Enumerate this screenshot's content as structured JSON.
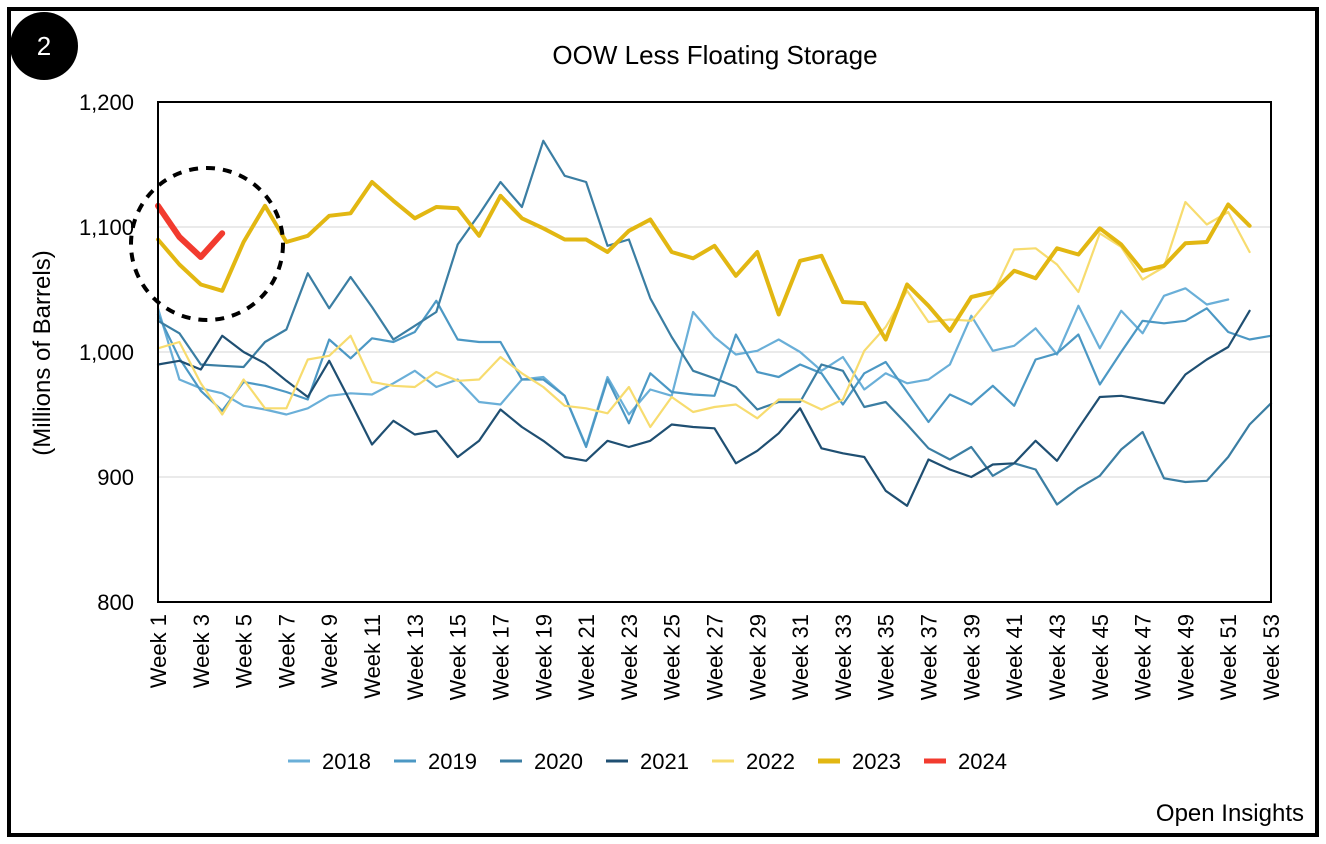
{
  "badge": {
    "number": "2"
  },
  "footer": {
    "source": "Open Insights"
  },
  "colors": {
    "2018": "#6aafd8",
    "2019": "#4c98c4",
    "2020": "#3b7ea3",
    "2021": "#1f4f72",
    "2022": "#f7dc6f",
    "2023": "#e2b712",
    "2024": "#f23b2f"
  },
  "chart_data": {
    "type": "line",
    "title": "OOW Less Floating Storage",
    "ylabel": "(Millions of Barrels)",
    "xlabel": "",
    "ylim": [
      800,
      1200
    ],
    "yticks": [
      800,
      900,
      1000,
      1100,
      1200
    ],
    "ytick_labels": [
      "800",
      "900",
      "1,000",
      "1,100",
      "1,200"
    ],
    "xtick_labels": [
      "Week 1",
      "Week 3",
      "Week 5",
      "Week 7",
      "Week 9",
      "Week 11",
      "Week 13",
      "Week 15",
      "Week 17",
      "Week 19",
      "Week 21",
      "Week 23",
      "Week 25",
      "Week 27",
      "Week 29",
      "Week 31",
      "Week 33",
      "Week 35",
      "Week 37",
      "Week 39",
      "Week 41",
      "Week 43",
      "Week 45",
      "Week 47",
      "Week 49",
      "Week 51",
      "Week 53"
    ],
    "grid": "horizontal",
    "legend": "bottom",
    "annotation": "dashed circle around weeks 1-5",
    "series": [
      {
        "name": "2018",
        "values": [
          1035,
          978,
          971,
          967,
          957,
          954,
          950,
          955,
          965,
          967,
          966,
          975,
          985,
          972,
          978,
          960,
          958,
          978,
          980,
          965,
          925,
          980,
          950,
          970,
          965,
          1032,
          1012,
          998,
          1001,
          1010,
          1000,
          985,
          996,
          970,
          983,
          975,
          978,
          990,
          1029,
          1001,
          1005,
          1019,
          998,
          1037,
          1003,
          1033,
          1015,
          1045,
          1051,
          1038,
          1042
        ]
      },
      {
        "name": "2019",
        "values": [
          1030,
          995,
          969,
          953,
          976,
          973,
          968,
          962,
          1010,
          995,
          1011,
          1008,
          1016,
          1041,
          1010,
          1008,
          1008,
          978,
          978,
          965,
          924,
          978,
          943,
          983,
          968,
          966,
          965,
          1014,
          984,
          980,
          990,
          983,
          958,
          983,
          992,
          968,
          944,
          966,
          958,
          973,
          957,
          994,
          999,
          1014,
          974,
          1000,
          1025,
          1023,
          1025,
          1035,
          1016,
          1010,
          1013
        ]
      },
      {
        "name": "2020",
        "values": [
          1025,
          1015,
          990,
          989,
          988,
          1008,
          1018,
          1063,
          1035,
          1060,
          1036,
          1010,
          1021,
          1032,
          1086,
          1110,
          1136,
          1116,
          1169,
          1141,
          1136,
          1085,
          1090,
          1043,
          1012,
          985,
          979,
          972,
          954,
          960,
          960,
          990,
          985,
          956,
          960,
          942,
          923,
          914,
          924,
          901,
          911,
          906,
          878,
          891,
          901,
          922,
          936,
          899,
          896,
          897,
          916,
          942,
          959
        ]
      },
      {
        "name": "2021",
        "values": [
          990,
          993,
          986,
          1013,
          1000,
          991,
          977,
          964,
          993,
          960,
          926,
          945,
          934,
          937,
          916,
          929,
          954,
          940,
          929,
          916,
          913,
          929,
          924,
          929,
          942,
          940,
          939,
          911,
          921,
          935,
          955,
          923,
          919,
          916,
          889,
          877,
          914,
          906,
          900,
          910,
          911,
          929,
          913,
          939,
          964,
          965,
          962,
          959,
          982,
          994,
          1004,
          1033
        ]
      },
      {
        "name": "2022",
        "values": [
          1003,
          1008,
          975,
          950,
          978,
          955,
          955,
          994,
          997,
          1013,
          976,
          973,
          972,
          984,
          977,
          978,
          996,
          983,
          972,
          957,
          955,
          951,
          972,
          940,
          964,
          952,
          956,
          958,
          947,
          962,
          962,
          954,
          962,
          1001,
          1020,
          1049,
          1024,
          1026,
          1025,
          1046,
          1082,
          1083,
          1070,
          1048,
          1095,
          1084,
          1058,
          1068,
          1120,
          1102,
          1112,
          1080
        ]
      },
      {
        "name": "2023",
        "values": [
          1090,
          1070,
          1054,
          1049,
          1088,
          1117,
          1088,
          1093,
          1109,
          1111,
          1136,
          1121,
          1107,
          1116,
          1115,
          1093,
          1125,
          1107,
          1099,
          1090,
          1090,
          1080,
          1097,
          1106,
          1080,
          1075,
          1085,
          1061,
          1080,
          1030,
          1073,
          1077,
          1040,
          1039,
          1010,
          1054,
          1037,
          1017,
          1044,
          1048,
          1065,
          1059,
          1083,
          1078,
          1099,
          1086,
          1065,
          1069,
          1087,
          1088,
          1118,
          1101
        ]
      },
      {
        "name": "2024",
        "values": [
          1117,
          1092,
          1076,
          1095
        ]
      }
    ]
  }
}
